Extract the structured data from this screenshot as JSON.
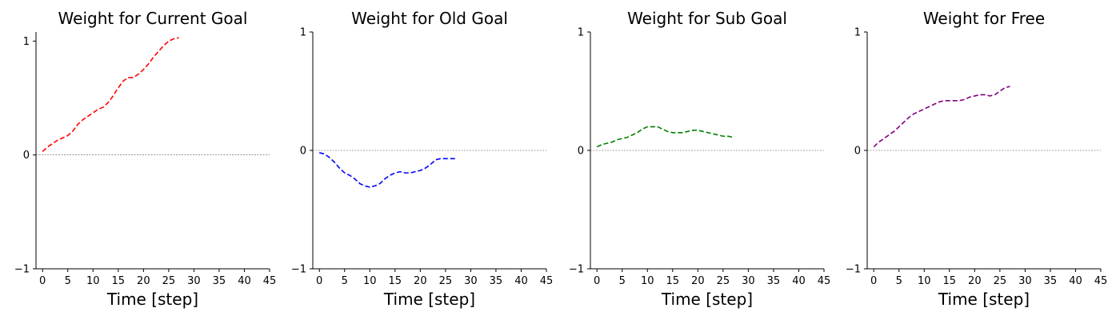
{
  "chart_data": [
    {
      "type": "line",
      "title": "Weight for Current Goal",
      "xlabel": "Time [step]",
      "ylabel": "",
      "xlim": [
        -1.3,
        45
      ],
      "ylim": [
        -1,
        1.08
      ],
      "xticks": [
        0,
        5,
        10,
        15,
        20,
        25,
        30,
        35,
        40,
        45
      ],
      "yticks": [
        -1,
        0,
        1
      ],
      "color": "#ff0000",
      "series": [
        {
          "x": [
            0,
            1,
            2,
            3,
            4,
            5,
            6,
            7,
            8,
            9,
            10,
            11,
            12,
            13,
            14,
            15,
            16,
            17,
            18,
            19,
            20,
            21,
            22,
            23,
            24,
            25,
            26,
            27
          ],
          "values": [
            0.03,
            0.07,
            0.1,
            0.13,
            0.15,
            0.17,
            0.21,
            0.27,
            0.31,
            0.34,
            0.37,
            0.4,
            0.42,
            0.46,
            0.52,
            0.59,
            0.65,
            0.68,
            0.68,
            0.71,
            0.75,
            0.8,
            0.86,
            0.91,
            0.96,
            1.0,
            1.02,
            1.03
          ]
        }
      ]
    },
    {
      "type": "line",
      "title": "Weight for Old Goal",
      "xlabel": "Time [step]",
      "ylabel": "",
      "xlim": [
        -1.3,
        45
      ],
      "ylim": [
        -1,
        1
      ],
      "xticks": [
        0,
        5,
        10,
        15,
        20,
        25,
        30,
        35,
        40,
        45
      ],
      "yticks": [
        -1,
        0,
        1
      ],
      "color": "#0000ff",
      "series": [
        {
          "x": [
            0,
            1,
            2,
            3,
            4,
            5,
            6,
            7,
            8,
            9,
            10,
            11,
            12,
            13,
            14,
            15,
            16,
            17,
            18,
            19,
            20,
            21,
            22,
            23,
            24,
            25,
            26,
            27
          ],
          "values": [
            -0.02,
            -0.03,
            -0.06,
            -0.1,
            -0.15,
            -0.19,
            -0.21,
            -0.24,
            -0.28,
            -0.3,
            -0.31,
            -0.3,
            -0.28,
            -0.24,
            -0.21,
            -0.19,
            -0.18,
            -0.19,
            -0.19,
            -0.18,
            -0.17,
            -0.15,
            -0.12,
            -0.08,
            -0.07,
            -0.07,
            -0.07,
            -0.07
          ]
        }
      ]
    },
    {
      "type": "line",
      "title": "Weight for Sub Goal",
      "xlabel": "Time [step]",
      "ylabel": "",
      "xlim": [
        -1.3,
        45
      ],
      "ylim": [
        -1,
        1
      ],
      "xticks": [
        0,
        5,
        10,
        15,
        20,
        25,
        30,
        35,
        40,
        45
      ],
      "yticks": [
        -1,
        0,
        1
      ],
      "color": "#008000",
      "series": [
        {
          "x": [
            0,
            1,
            2,
            3,
            4,
            5,
            6,
            7,
            8,
            9,
            10,
            11,
            12,
            13,
            14,
            15,
            16,
            17,
            18,
            19,
            20,
            21,
            22,
            23,
            24,
            25,
            26,
            27
          ],
          "values": [
            0.03,
            0.05,
            0.06,
            0.07,
            0.09,
            0.1,
            0.11,
            0.13,
            0.15,
            0.18,
            0.2,
            0.2,
            0.2,
            0.18,
            0.16,
            0.15,
            0.15,
            0.15,
            0.16,
            0.17,
            0.17,
            0.16,
            0.15,
            0.14,
            0.13,
            0.12,
            0.12,
            0.11
          ]
        }
      ]
    },
    {
      "type": "line",
      "title": "Weight for Free",
      "xlabel": "Time [step]",
      "ylabel": "",
      "xlim": [
        -1.3,
        45
      ],
      "ylim": [
        -1,
        1
      ],
      "xticks": [
        0,
        5,
        10,
        15,
        20,
        25,
        30,
        35,
        40,
        45
      ],
      "yticks": [
        -1,
        0,
        1
      ],
      "color": "#800080",
      "series": [
        {
          "x": [
            0,
            1,
            2,
            3,
            4,
            5,
            6,
            7,
            8,
            9,
            10,
            11,
            12,
            13,
            14,
            15,
            16,
            17,
            18,
            19,
            20,
            21,
            22,
            23,
            24,
            25,
            26,
            27
          ],
          "values": [
            0.03,
            0.07,
            0.1,
            0.13,
            0.16,
            0.2,
            0.24,
            0.28,
            0.31,
            0.33,
            0.35,
            0.37,
            0.39,
            0.41,
            0.42,
            0.42,
            0.42,
            0.42,
            0.43,
            0.45,
            0.46,
            0.47,
            0.47,
            0.46,
            0.47,
            0.5,
            0.53,
            0.54
          ]
        }
      ]
    }
  ]
}
